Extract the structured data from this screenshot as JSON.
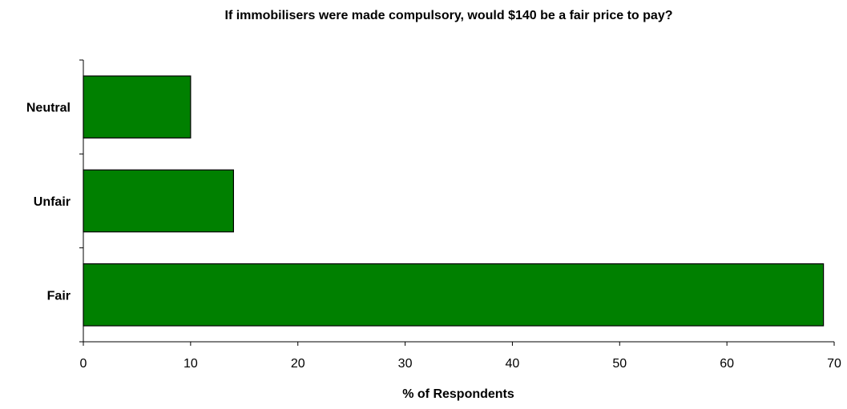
{
  "chart_data": {
    "type": "bar",
    "orientation": "horizontal",
    "title": "If immobilisers were made compulsory, would $140 be a fair price to pay?",
    "xlabel": "% of Respondents",
    "ylabel": "",
    "categories": [
      "Neutral",
      "Unfair",
      "Fair"
    ],
    "values": [
      10,
      14,
      69
    ],
    "xlim": [
      0,
      70
    ],
    "xticks": [
      "0",
      "10",
      "20",
      "30",
      "40",
      "50",
      "60",
      "70"
    ],
    "grid": false,
    "legend": "none",
    "bar_color": "#008000",
    "bar_border_color": "#000000"
  }
}
